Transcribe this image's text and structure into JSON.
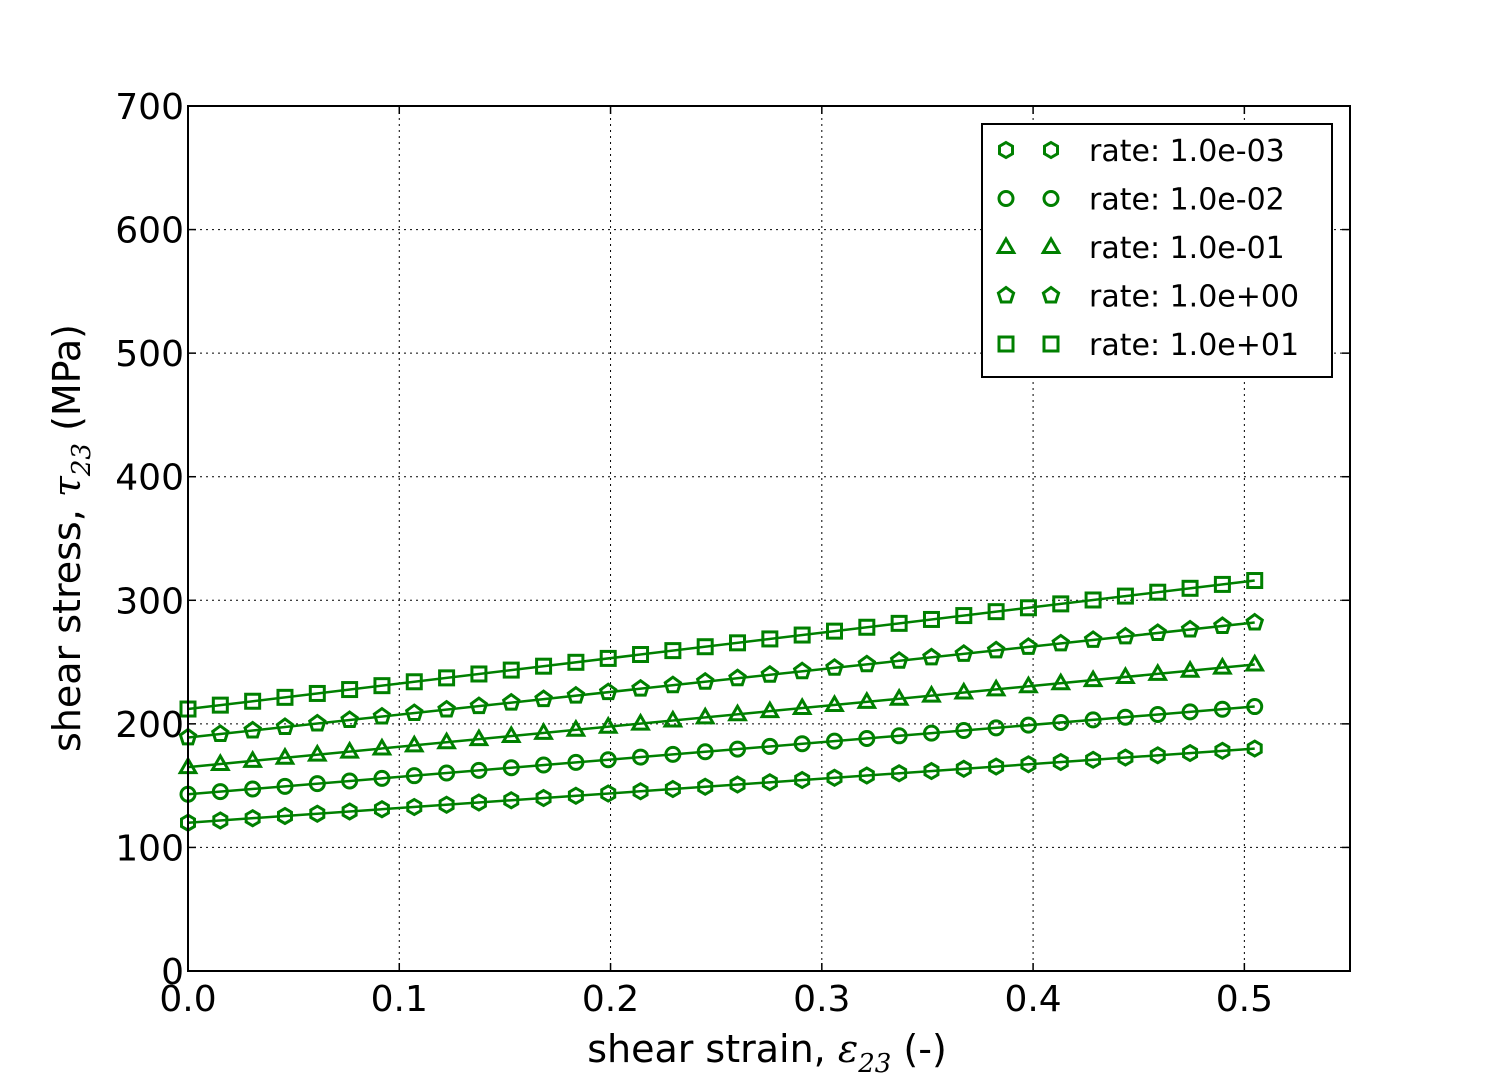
{
  "chart_data": {
    "type": "line",
    "xlabel": {
      "prefix": "shear strain, ",
      "symbol": "ε",
      "subscript": "23",
      "suffix": " (-)"
    },
    "ylabel": {
      "prefix": "shear stress, ",
      "symbol": "τ",
      "subscript": "23",
      "suffix": " (MPa)"
    },
    "xlim": [
      0.0,
      0.55
    ],
    "ylim": [
      0,
      700
    ],
    "xticks": [
      0.0,
      0.1,
      0.2,
      0.3,
      0.4,
      0.5
    ],
    "xtick_labels": [
      "0.0",
      "0.1",
      "0.2",
      "0.3",
      "0.4",
      "0.5"
    ],
    "yticks": [
      0,
      100,
      200,
      300,
      400,
      500,
      600,
      700
    ],
    "ytick_labels": [
      "0",
      "100",
      "200",
      "300",
      "400",
      "500",
      "600",
      "700"
    ],
    "grid": true,
    "legend_position": "top-right",
    "line_color": "#008000",
    "marker_x": {
      "start": 0.0,
      "step": 0.0153,
      "count": 34
    },
    "series": [
      {
        "name": "rate: 1.0e-03",
        "marker": "hexagon",
        "y_start": 120,
        "y_end": 180
      },
      {
        "name": "rate: 1.0e-02",
        "marker": "circle",
        "y_start": 143,
        "y_end": 214
      },
      {
        "name": "rate: 1.0e-01",
        "marker": "triangle",
        "y_start": 165,
        "y_end": 248
      },
      {
        "name": "rate: 1.0e+00",
        "marker": "pentagon",
        "y_start": 189,
        "y_end": 282
      },
      {
        "name": "rate: 1.0e+01",
        "marker": "square",
        "y_start": 212,
        "y_end": 316
      }
    ]
  }
}
